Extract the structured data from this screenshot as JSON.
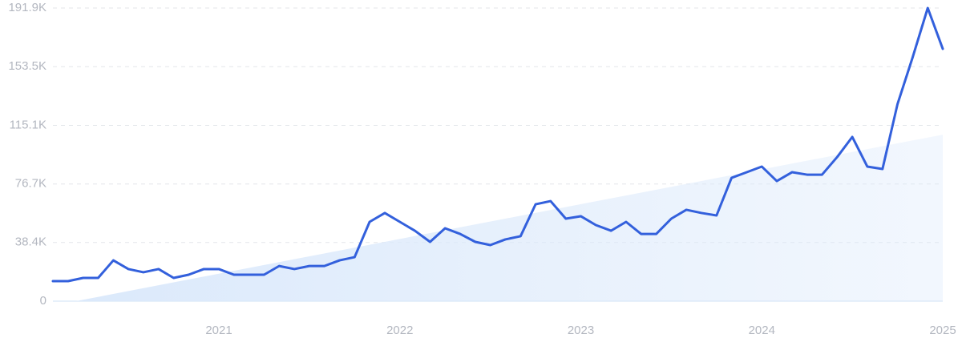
{
  "chart_data": {
    "type": "line",
    "x": [
      2020.083,
      2020.167,
      2020.25,
      2020.333,
      2020.417,
      2020.5,
      2020.583,
      2020.667,
      2020.75,
      2020.833,
      2020.917,
      2021,
      2021.083,
      2021.167,
      2021.25,
      2021.333,
      2021.417,
      2021.5,
      2021.583,
      2021.667,
      2021.75,
      2021.833,
      2021.917,
      2022,
      2022.083,
      2022.167,
      2022.25,
      2022.333,
      2022.417,
      2022.5,
      2022.583,
      2022.667,
      2022.75,
      2022.833,
      2022.917,
      2023,
      2023.083,
      2023.167,
      2023.25,
      2023.333,
      2023.417,
      2023.5,
      2023.583,
      2023.667,
      2023.75,
      2023.833,
      2023.917,
      2024,
      2024.083,
      2024.167,
      2024.25,
      2024.333,
      2024.417,
      2024.5,
      2024.583,
      2024.667,
      2024.75,
      2024.833,
      2024.917,
      2025
    ],
    "series": [
      {
        "color": "#3360dc",
        "values": [
          13100,
          13100,
          15200,
          15200,
          26700,
          21000,
          18900,
          21000,
          15200,
          17300,
          21000,
          21000,
          17300,
          17300,
          17300,
          23000,
          21000,
          23000,
          23000,
          26700,
          28800,
          51900,
          57700,
          51900,
          46100,
          38800,
          47700,
          44000,
          38800,
          36700,
          40400,
          42500,
          63400,
          65500,
          54000,
          55600,
          49800,
          46100,
          51900,
          44000,
          44000,
          54000,
          59800,
          57700,
          56100,
          80700,
          84400,
          88100,
          78600,
          84400,
          82800,
          82800,
          94400,
          107500,
          88100,
          86500,
          129000,
          159400,
          191900,
          165200
        ]
      }
    ],
    "trend": {
      "color": "#dbe9fb",
      "x": [
        2020.21,
        2025
      ],
      "values": [
        0,
        109000
      ]
    },
    "xlim": [
      2020.083,
      2025
    ],
    "xticks": [
      2021,
      2022,
      2023,
      2024,
      2025
    ],
    "ylim": [
      0,
      191900
    ],
    "yticks": [
      0,
      {
        "value": 38400,
        "label": "38.4K"
      },
      {
        "value": 76700,
        "label": "76.7K"
      },
      {
        "value": 115100,
        "label": "115.1K"
      },
      {
        "value": 153500,
        "label": "153.5K"
      },
      {
        "value": 191900,
        "label": "191.9K"
      }
    ],
    "grid": true
  }
}
